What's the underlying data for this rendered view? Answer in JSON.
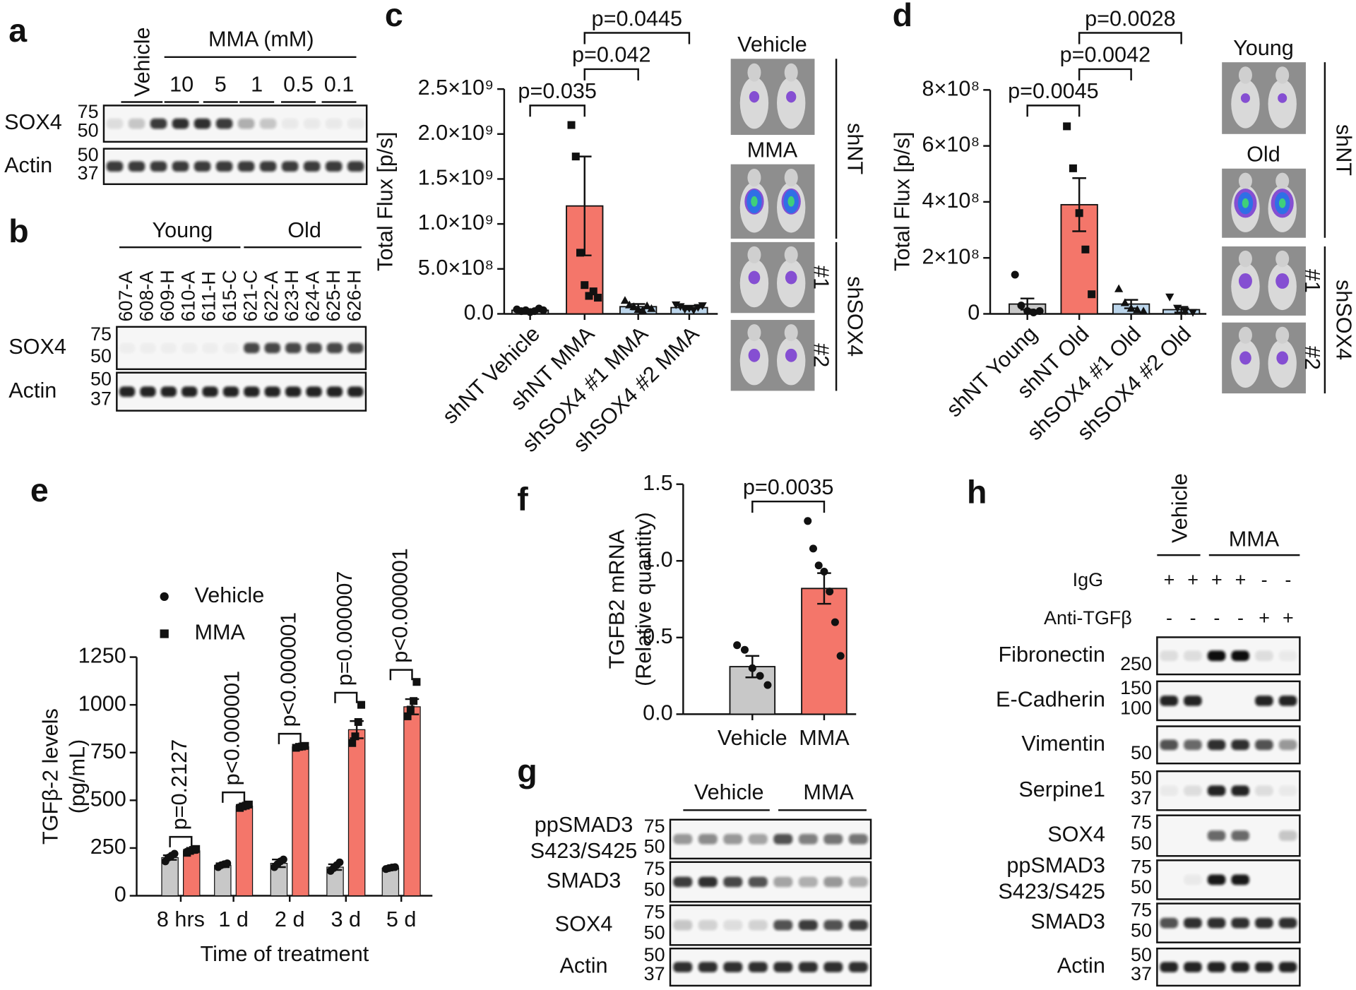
{
  "panels": {
    "a": {
      "letter": "a",
      "vehicle": "Vehicle",
      "treatment": "MMA (mM)",
      "doses": [
        "10",
        "5",
        "1",
        "0.5",
        "0.1"
      ],
      "rows": [
        {
          "name": "SOX4",
          "markers": [
            75,
            50
          ]
        },
        {
          "name": "Actin",
          "markers": [
            50,
            37
          ]
        }
      ]
    },
    "b": {
      "letter": "b",
      "groups": [
        "Young",
        "Old"
      ],
      "lanes": [
        "607-A",
        "608-A",
        "609-H",
        "610-A",
        "611-H",
        "615-C",
        "621-C",
        "622-A",
        "623-H",
        "624-A",
        "625-H",
        "626-H"
      ],
      "rows": [
        {
          "name": "SOX4",
          "markers": [
            75,
            50
          ]
        },
        {
          "name": "Actin",
          "markers": [
            50,
            37
          ]
        }
      ]
    },
    "c": {
      "letter": "c",
      "conditions": [
        "Vehicle",
        "MMA"
      ],
      "group1": "shNT",
      "group2": "shSOX4",
      "clones": [
        "#1",
        "#2"
      ]
    },
    "d": {
      "letter": "d",
      "conditions": [
        "Young",
        "Old"
      ],
      "group1": "shNT",
      "group2": "shSOX4",
      "clones": [
        "#1",
        "#2"
      ]
    },
    "e": {
      "letter": "e"
    },
    "f": {
      "letter": "f"
    },
    "g": {
      "letter": "g",
      "groups": [
        "Vehicle",
        "MMA"
      ],
      "rows": [
        {
          "name": [
            "ppSMAD3",
            "S423/S425"
          ],
          "markers": [
            75,
            50
          ]
        },
        {
          "name": "SMAD3",
          "markers": [
            75,
            50
          ]
        },
        {
          "name": "SOX4",
          "markers": [
            75,
            50
          ]
        },
        {
          "name": "Actin",
          "markers": [
            50,
            37
          ]
        }
      ]
    },
    "h": {
      "letter": "h",
      "groups": [
        "Vehicle",
        "MMA"
      ],
      "conditions": [
        {
          "name": "IgG",
          "signs": [
            "+",
            "+",
            "+",
            "+",
            "-",
            "-"
          ]
        },
        {
          "name": "Anti-TGFβ",
          "signs": [
            "-",
            "-",
            "-",
            "-",
            "+",
            "+"
          ]
        }
      ],
      "rows": [
        {
          "name": "Fibronectin",
          "markers": [
            250
          ]
        },
        {
          "name": "E-Cadherin",
          "markers": [
            150,
            100
          ]
        },
        {
          "name": "Vimentin",
          "markers": [
            50
          ]
        },
        {
          "name": "Serpine1",
          "markers": [
            50,
            37
          ]
        },
        {
          "name": "SOX4",
          "markers": [
            75,
            50
          ]
        },
        {
          "name": [
            "ppSMAD3",
            "S423/S425"
          ],
          "markers": [
            75,
            50
          ]
        },
        {
          "name": "SMAD3",
          "markers": [
            75,
            50
          ]
        },
        {
          "name": "Actin",
          "markers": [
            50,
            37
          ]
        }
      ]
    }
  },
  "chart_data": [
    {
      "type": "bar",
      "ylabel": [
        "Total Flux [p/s]"
      ],
      "categories": [
        "shNT Vehicle",
        "shNT MMA",
        "shSOX4 #1 MMA",
        "shSOX4 #2 MMA"
      ],
      "values": [
        40000000,
        1200000000,
        80000000,
        70000000
      ],
      "errors": [
        10000000,
        550000000,
        30000000,
        20000000
      ],
      "points": [
        [
          50000000,
          30000000,
          40000000,
          20000000,
          30000000,
          60000000,
          40000000
        ],
        [
          2100000000,
          1750000000,
          680000000,
          320000000,
          200000000,
          250000000,
          180000000
        ],
        [
          150000000,
          100000000,
          80000000,
          50000000,
          40000000,
          90000000,
          60000000
        ],
        [
          100000000,
          80000000,
          50000000,
          60000000,
          40000000,
          70000000,
          90000000
        ]
      ],
      "colors": [
        "#c8c8c8",
        "#f4766a",
        "#bcd6ec",
        "#bcd6ec"
      ],
      "ylim": [
        0,
        2500000000
      ],
      "yticks": [
        {
          "value": 0,
          "label": "0.0"
        },
        {
          "value": 500000000,
          "label": "5.0×10⁸"
        },
        {
          "value": 1000000000,
          "label": "1.0×10⁹"
        },
        {
          "value": 1500000000,
          "label": "1.5×10⁹"
        },
        {
          "value": 2000000000,
          "label": "2.0×10⁹"
        },
        {
          "value": 2500000000,
          "label": "2.5×10⁹"
        }
      ],
      "comparisons": [
        {
          "label": "p=0.035",
          "pair": [
            0,
            1
          ]
        },
        {
          "label": "p=0.042",
          "pair": [
            1,
            2
          ]
        },
        {
          "label": "p=0.0445",
          "pair": [
            1,
            3
          ]
        }
      ]
    },
    {
      "type": "bar",
      "ylabel": [
        "Total Flux [p/s]"
      ],
      "categories": [
        "shNT Young",
        "shNT Old",
        "shSOX4 #1 Old",
        "shSOX4 #2 Old"
      ],
      "values": [
        35000000,
        390000000,
        35000000,
        15000000
      ],
      "errors": [
        20000000,
        95000000,
        15000000,
        10000000
      ],
      "points": [
        [
          140000000,
          30000000,
          10000000,
          5000000,
          10000000
        ],
        [
          670000000,
          520000000,
          360000000,
          230000000,
          70000000
        ],
        [
          90000000,
          40000000,
          20000000,
          15000000,
          10000000
        ],
        [
          60000000,
          20000000,
          10000000,
          5000000
        ]
      ],
      "colors": [
        "#c8c8c8",
        "#f4766a",
        "#bcd6ec",
        "#bcd6ec"
      ],
      "ylim": [
        0,
        800000000
      ],
      "yticks": [
        0,
        {
          "value": 200000000,
          "label": "2×10⁸"
        },
        {
          "value": 400000000,
          "label": "4×10⁸"
        },
        {
          "value": 600000000,
          "label": "6×10⁸"
        },
        {
          "value": 800000000,
          "label": "8×10⁸"
        }
      ],
      "comparisons": [
        {
          "label": "p=0.0045",
          "pair": [
            0,
            1
          ]
        },
        {
          "label": "p=0.0042",
          "pair": [
            1,
            2
          ]
        },
        {
          "label": "p=0.0028",
          "pair": [
            1,
            3
          ]
        }
      ]
    },
    {
      "type": "grouped_bar",
      "ylabel": [
        "TGFβ-2 levels",
        "(pg/mL)"
      ],
      "xlabel": "Time of treatment",
      "legend": "upper left",
      "categories": [
        "8 hrs",
        "1 d",
        "2 d",
        "3 d",
        "5 d"
      ],
      "series": [
        {
          "name": "Vehicle",
          "color": "#c8c8c8",
          "values": [
            200,
            160,
            170,
            150,
            145
          ],
          "errors": [
            12,
            10,
            20,
            15,
            3
          ],
          "points": [
            [
              180,
              200,
              210,
              220
            ],
            [
              150,
              160,
              165,
              170
            ],
            [
              150,
              165,
              180,
              190
            ],
            [
              130,
              145,
              160,
              175
            ],
            [
              140,
              145,
              148,
              150
            ]
          ]
        },
        {
          "name": "MMA",
          "color": "#f4766a",
          "values": [
            235,
            470,
            780,
            870,
            990
          ],
          "errors": [
            10,
            8,
            4,
            45,
            40
          ],
          "points": [
            [
              225,
              235,
              240,
              245
            ],
            [
              460,
              468,
              472,
              478
            ],
            [
              775,
              780,
              782,
              785
            ],
            [
              800,
              835,
              910,
              1000
            ],
            [
              940,
              975,
              1020,
              1120
            ]
          ]
        }
      ],
      "ylim": [
        0,
        1250
      ],
      "yticks": [
        0,
        250,
        500,
        750,
        1000,
        1250
      ],
      "annotations": [
        "p=0.2127",
        "p<0.000001",
        "p<0.000001",
        "p=0.000007",
        "p<0.000001"
      ]
    },
    {
      "type": "bar",
      "ylabel": [
        "TGFB2 mRNA",
        "(Relative quantity)"
      ],
      "categories": [
        "Vehicle",
        "MMA"
      ],
      "values": [
        0.31,
        0.82
      ],
      "errors": [
        0.07,
        0.1
      ],
      "points": [
        [
          0.45,
          0.42,
          0.3,
          0.25,
          0.19
        ],
        [
          1.26,
          1.08,
          0.97,
          0.93,
          0.8,
          0.6,
          0.38
        ]
      ],
      "colors": [
        "#c8c8c8",
        "#f4766a"
      ],
      "ylim": [
        0,
        1.5
      ],
      "yticks": [
        {
          "value": 0,
          "label": "0.0"
        },
        0.5,
        {
          "value": 1,
          "label": "1.0"
        },
        1.5
      ],
      "comparisons": [
        {
          "label": "p=0.0035",
          "pair": [
            0,
            1
          ]
        }
      ]
    }
  ]
}
